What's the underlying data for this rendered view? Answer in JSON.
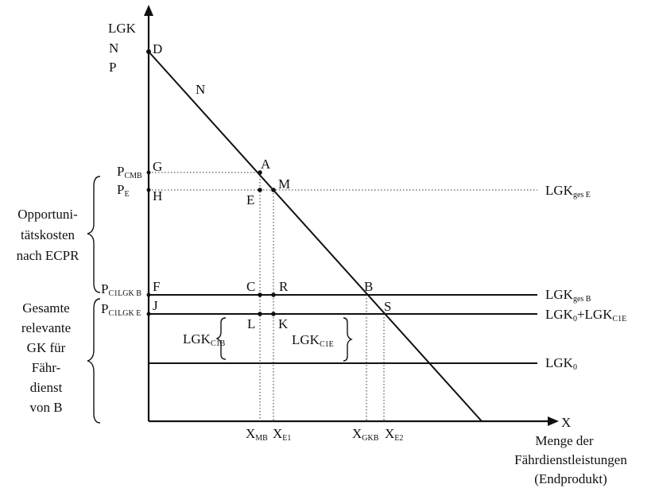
{
  "axis": {
    "y_title": "LGK",
    "y_title_2": "N",
    "y_title_3": "P",
    "x_title": "X",
    "x_desc_line1": "Menge der",
    "x_desc_line2": "Fährdienstleistungen",
    "x_desc_line3": "(Endprodukt)"
  },
  "points": {
    "D": "D",
    "N": "N",
    "G": "G",
    "H": "H",
    "A": "A",
    "M": "M",
    "E": "E",
    "F": "F",
    "C": "C",
    "R": "R",
    "B": "B",
    "J": "J",
    "L": "L",
    "K": "K",
    "S": "S"
  },
  "price_labels": {
    "p_cmb": {
      "main": "P",
      "sub": "CMB"
    },
    "p_e": {
      "main": "P",
      "sub": "E"
    },
    "p_c1lgkb": {
      "main": "P",
      "sub": "C1LGK B"
    },
    "p_c1lgke": {
      "main": "P",
      "sub": "C1LGK E"
    }
  },
  "curve_labels": {
    "lgk_ges_e": {
      "main": "LGK",
      "sub": "ges E"
    },
    "lgk_ges_b": {
      "main": "LGK",
      "sub": "ges B"
    },
    "lgk_0_plus": {
      "main": "LGK",
      "sub": "0",
      "plus": "+LGK",
      "sub2": "C1E"
    },
    "lgk_0": {
      "main": "LGK",
      "sub": "0"
    },
    "lgk_c1b": {
      "main": "LGK",
      "sub": "C1B"
    },
    "lgk_c1e": {
      "main": "LGK",
      "sub": "C1E"
    }
  },
  "x_ticks": {
    "x_mb": {
      "main": "X",
      "sub": "MB"
    },
    "x_e1": {
      "main": "X",
      "sub": "E1"
    },
    "x_gkb": {
      "main": "X",
      "sub": "GKB"
    },
    "x_e2": {
      "main": "X",
      "sub": "E2"
    }
  },
  "side_notes": {
    "opportunity": [
      "Opportuni-",
      "tätskosten",
      "nach ECPR"
    ],
    "total": [
      "Gesamte",
      "relevante",
      "GK für",
      "Fähr-",
      "dienst",
      "von B"
    ]
  }
}
